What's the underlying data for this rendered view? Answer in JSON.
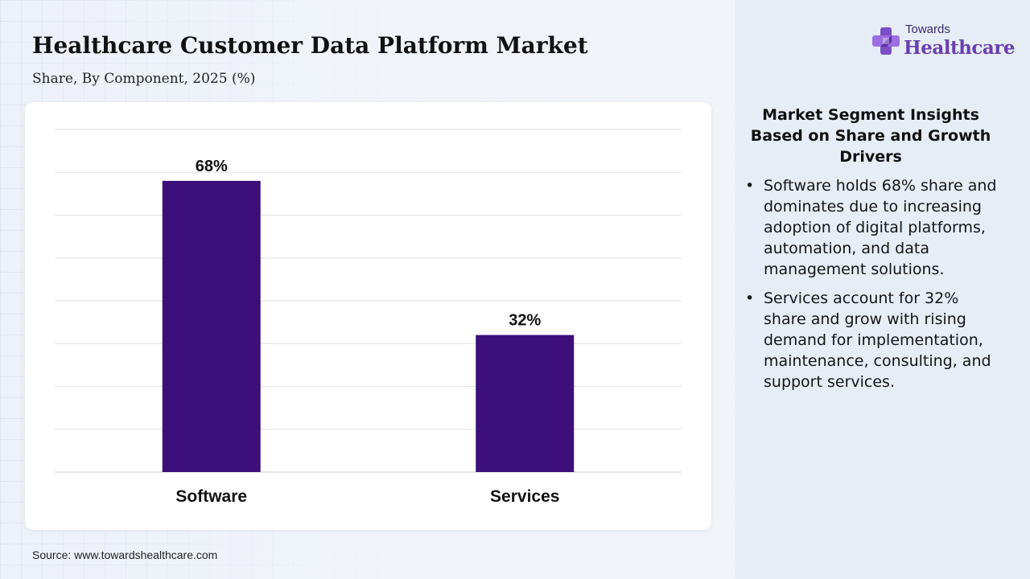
{
  "header": {
    "title": "Healthcare Customer Data Platform Market",
    "subtitle": "Share, By Component, 2025 (%)"
  },
  "logo": {
    "top_text": "Towards",
    "main_text": "Healthcare",
    "icon": "cross-plus-icon"
  },
  "chart_data": {
    "type": "bar",
    "categories": [
      "Software",
      "Services"
    ],
    "values": [
      68,
      32
    ],
    "data_labels": [
      "68%",
      "32%"
    ],
    "title": "",
    "xlabel": "",
    "ylabel": "",
    "ylim": [
      0,
      80
    ],
    "grid": true,
    "legend": "none",
    "bar_color": "#3d0f7a"
  },
  "insights": {
    "title": "Market Segment Insights Based on Share and Growth Drivers",
    "items": [
      "Software holds 68% share and dominates due to increasing adoption of digital platforms, automation, and data management solutions.",
      "Services account for 32% share and grow with rising demand for implementation, maintenance, consulting, and support services."
    ]
  },
  "footer": {
    "source": "Source: www.towardshealthcare.com"
  },
  "colors": {
    "bar": "#3d0f7a",
    "logo_accent": "#6a3fb0",
    "logo_accent_light": "#9b6fe0"
  }
}
